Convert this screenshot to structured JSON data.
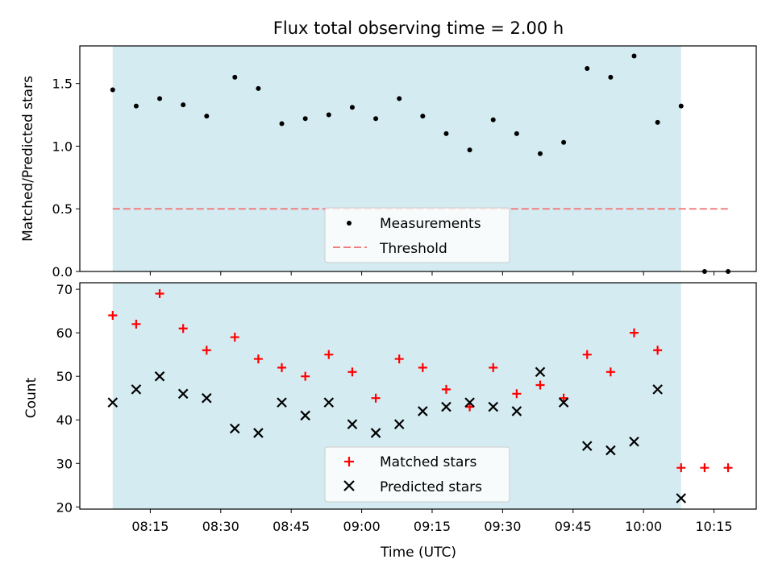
{
  "chart_data": {
    "type": "scatter",
    "title": "Flux total observing time = 2.00 h",
    "xlabel": "Time (UTC)",
    "x_tick_labels": [
      "08:15",
      "08:30",
      "08:45",
      "09:00",
      "09:15",
      "09:30",
      "09:45",
      "10:00",
      "10:15"
    ],
    "times": [
      "08:07",
      "08:12",
      "08:17",
      "08:22",
      "08:27",
      "08:33",
      "08:38",
      "08:43",
      "08:48",
      "08:53",
      "08:58",
      "09:03",
      "09:08",
      "09:13",
      "09:18",
      "09:23",
      "09:28",
      "09:33",
      "09:38",
      "09:43",
      "09:48",
      "09:53",
      "09:58",
      "10:03",
      "10:08",
      "10:13",
      "10:18"
    ],
    "x_range": [
      "08:00",
      "10:24"
    ],
    "observing_window": [
      "08:07",
      "10:08"
    ],
    "colors": {
      "window": "#d4ebf1",
      "measurement": "#000000",
      "threshold": "#f08080",
      "matched": "#ff0000",
      "predicted": "#000000"
    },
    "top": {
      "ylabel": "Matched/Predicted stars",
      "ylim": [
        0,
        1.8
      ],
      "y_ticks": [
        "0.0",
        "0.5",
        "1.0",
        "1.5"
      ],
      "threshold": 0.5,
      "measurements": [
        1.45,
        1.32,
        1.38,
        1.33,
        1.24,
        1.55,
        1.46,
        1.18,
        1.22,
        1.25,
        1.31,
        1.22,
        1.38,
        1.24,
        1.1,
        0.97,
        1.21,
        1.1,
        0.94,
        1.03,
        1.62,
        1.55,
        1.72,
        1.19,
        1.32,
        0.0,
        0.0
      ],
      "legend": {
        "placement": "lower center",
        "items": [
          "Measurements",
          "Threshold"
        ]
      }
    },
    "bottom": {
      "ylabel": "Count",
      "ylim": [
        19.5,
        71.5
      ],
      "y_ticks": [
        "20",
        "30",
        "40",
        "50",
        "60",
        "70"
      ],
      "matched": [
        64,
        62,
        69,
        61,
        56,
        59,
        54,
        52,
        50,
        55,
        51,
        45,
        54,
        52,
        47,
        43,
        52,
        46,
        48,
        45,
        55,
        51,
        60,
        56,
        29,
        29,
        29
      ],
      "predicted": [
        44,
        47,
        50,
        46,
        45,
        38,
        37,
        44,
        41,
        44,
        39,
        37,
        39,
        42,
        43,
        44,
        43,
        42,
        51,
        44,
        34,
        33,
        35,
        47,
        22,
        null,
        null
      ],
      "legend": {
        "placement": "lower center",
        "items": [
          "Matched stars",
          "Predicted stars"
        ]
      }
    }
  }
}
